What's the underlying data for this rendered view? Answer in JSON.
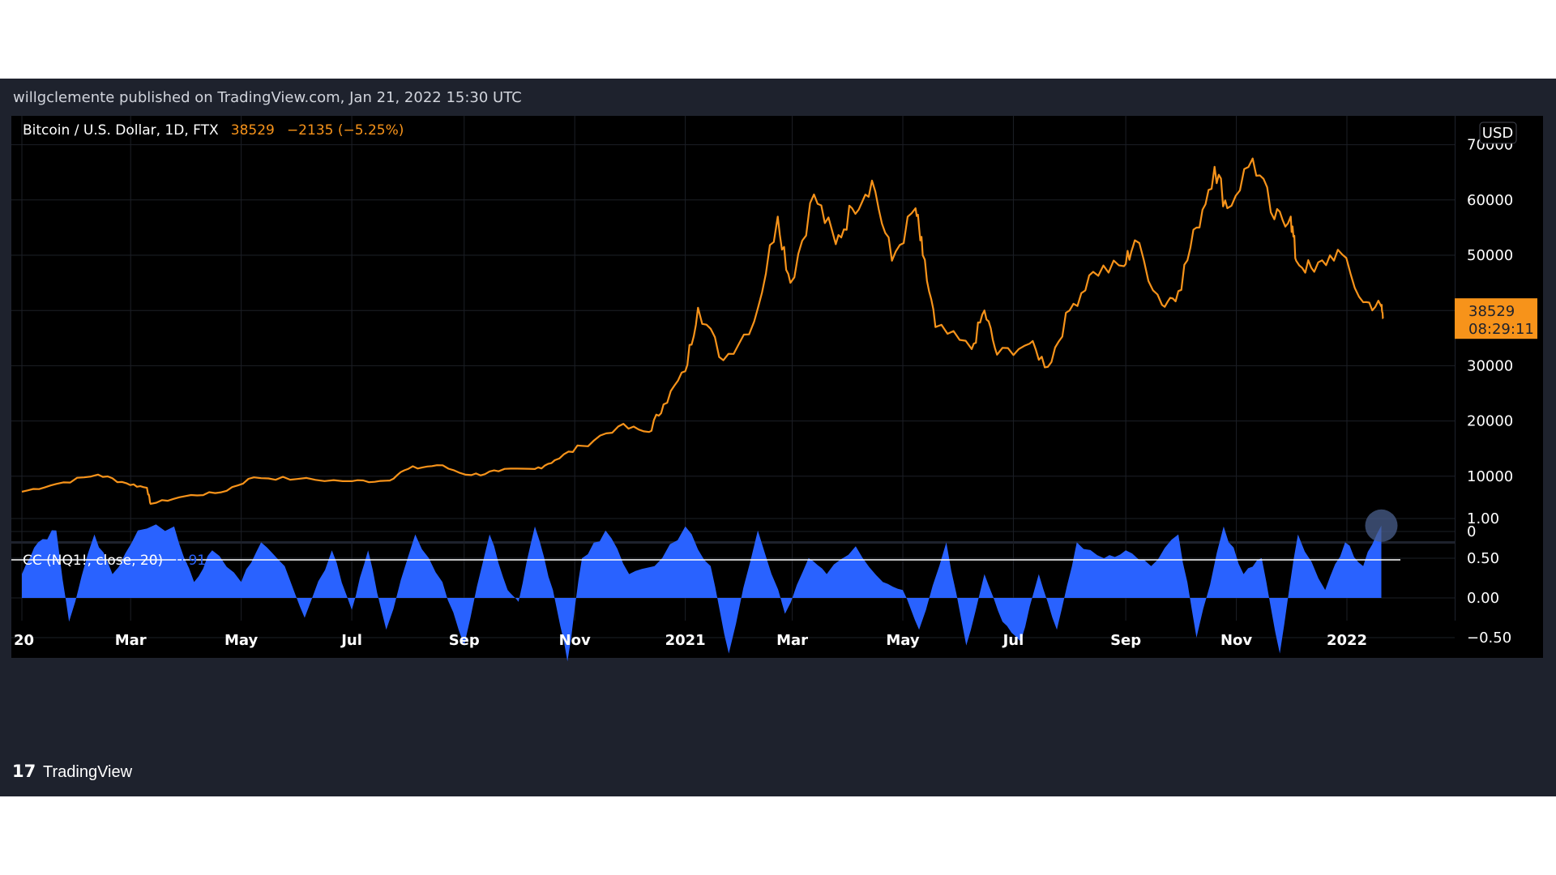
{
  "header": {
    "publisher_line": "willgclemente published on TradingView.com, Jan 21, 2022 15:30 UTC"
  },
  "legend": {
    "symbol": "Bitcoin / U.S. Dollar, 1D, FTX",
    "last": "38529",
    "change": "−2135 (−5.25%)"
  },
  "price_axis": {
    "currency_badge": "USD",
    "ticks": [
      "70000",
      "60000",
      "50000",
      "40000",
      "30000",
      "20000",
      "10000",
      "0"
    ],
    "price_label": "38529",
    "countdown_label": "08:29:11"
  },
  "indicator": {
    "title": "CC (NQ1!, close, 20)",
    "value": "0.91",
    "ticks": [
      "1.00",
      "0.50",
      "0.00",
      "−0.50"
    ]
  },
  "x_axis": {
    "ticks": [
      "20",
      "Mar",
      "May",
      "Jul",
      "Sep",
      "Nov",
      "2021",
      "Mar",
      "May",
      "Jul",
      "Sep",
      "Nov",
      "2022"
    ]
  },
  "footer": {
    "logo_text": "TradingView"
  },
  "colors": {
    "price_line": "#f7931a",
    "indicator_fill": "#2962ff",
    "background": "#000000",
    "frame": "#1e222d"
  },
  "chart_data": [
    {
      "type": "line",
      "title": "Bitcoin / U.S. Dollar, 1D, FTX",
      "ylim": [
        0,
        70000
      ],
      "series": [
        {
          "name": "Bitcoin / U.S. Dollar",
          "points": [
            [
              "2020-01-01",
              7200
            ],
            [
              "2020-01-20",
              8600
            ],
            [
              "2020-02-12",
              10300
            ],
            [
              "2020-02-28",
              8700
            ],
            [
              "2020-03-10",
              7900
            ],
            [
              "2020-03-12",
              5000
            ],
            [
              "2020-03-31",
              6400
            ],
            [
              "2020-04-20",
              7100
            ],
            [
              "2020-05-08",
              9800
            ],
            [
              "2020-06-01",
              9500
            ],
            [
              "2020-07-01",
              9100
            ],
            [
              "2020-07-20",
              9200
            ],
            [
              "2020-08-01",
              11300
            ],
            [
              "2020-08-17",
              12000
            ],
            [
              "2020-09-05",
              10200
            ],
            [
              "2020-09-20",
              10900
            ],
            [
              "2020-10-10",
              11300
            ],
            [
              "2020-10-21",
              12900
            ],
            [
              "2020-11-05",
              15500
            ],
            [
              "2020-11-25",
              19000
            ],
            [
              "2020-12-12",
              18000
            ],
            [
              "2020-12-20",
              23000
            ],
            [
              "2021-01-01",
              29000
            ],
            [
              "2021-01-08",
              40500
            ],
            [
              "2021-01-22",
              31000
            ],
            [
              "2021-02-08",
              38000
            ],
            [
              "2021-02-21",
              57000
            ],
            [
              "2021-02-28",
              45000
            ],
            [
              "2021-03-13",
              61000
            ],
            [
              "2021-03-25",
              52000
            ],
            [
              "2021-04-03",
              58500
            ],
            [
              "2021-04-14",
              63500
            ],
            [
              "2021-04-25",
              49000
            ],
            [
              "2021-05-08",
              58500
            ],
            [
              "2021-05-12",
              50000
            ],
            [
              "2021-05-19",
              37000
            ],
            [
              "2021-06-08",
              33000
            ],
            [
              "2021-06-15",
              40000
            ],
            [
              "2021-06-22",
              32000
            ],
            [
              "2021-07-10",
              34000
            ],
            [
              "2021-07-20",
              29800
            ],
            [
              "2021-08-01",
              40000
            ],
            [
              "2021-08-14",
              47000
            ],
            [
              "2021-08-31",
              48000
            ],
            [
              "2021-09-06",
              52700
            ],
            [
              "2021-09-21",
              41000
            ],
            [
              "2021-09-30",
              43500
            ],
            [
              "2021-10-10",
              55000
            ],
            [
              "2021-10-20",
              66000
            ],
            [
              "2021-10-27",
              58500
            ],
            [
              "2021-11-10",
              67500
            ],
            [
              "2021-11-22",
              56500
            ],
            [
              "2021-12-01",
              57000
            ],
            [
              "2021-12-04",
              49000
            ],
            [
              "2021-12-14",
              47000
            ],
            [
              "2021-12-27",
              51000
            ],
            [
              "2022-01-10",
              41500
            ],
            [
              "2022-01-20",
              40700
            ],
            [
              "2022-01-21",
              38529
            ]
          ]
        }
      ]
    },
    {
      "type": "area",
      "title": "CC (NQ1!, close, 20)",
      "ylim": [
        -0.75,
        1.05
      ],
      "series": [
        {
          "name": "CC (NQ1!, close, 20)",
          "points": [
            [
              "2020-01-01",
              0.3
            ],
            [
              "2020-01-10",
              0.7
            ],
            [
              "2020-01-20",
              0.85
            ],
            [
              "2020-01-27",
              -0.3
            ],
            [
              "2020-02-10",
              0.8
            ],
            [
              "2020-02-20",
              0.3
            ],
            [
              "2020-03-05",
              0.85
            ],
            [
              "2020-03-25",
              0.9
            ],
            [
              "2020-04-05",
              0.2
            ],
            [
              "2020-04-15",
              0.6
            ],
            [
              "2020-05-01",
              0.2
            ],
            [
              "2020-05-12",
              0.7
            ],
            [
              "2020-05-25",
              0.4
            ],
            [
              "2020-06-05",
              -0.25
            ],
            [
              "2020-06-20",
              0.6
            ],
            [
              "2020-07-01",
              -0.15
            ],
            [
              "2020-07-10",
              0.6
            ],
            [
              "2020-07-20",
              -0.4
            ],
            [
              "2020-08-05",
              0.8
            ],
            [
              "2020-08-20",
              0.2
            ],
            [
              "2020-09-01",
              -0.6
            ],
            [
              "2020-09-15",
              0.8
            ],
            [
              "2020-09-25",
              0.1
            ],
            [
              "2020-10-01",
              -0.05
            ],
            [
              "2020-10-10",
              0.9
            ],
            [
              "2020-10-20",
              0.1
            ],
            [
              "2020-10-28",
              -0.8
            ],
            [
              "2020-11-05",
              0.5
            ],
            [
              "2020-11-18",
              0.85
            ],
            [
              "2020-12-01",
              0.3
            ],
            [
              "2020-12-15",
              0.4
            ],
            [
              "2021-01-01",
              0.9
            ],
            [
              "2021-01-15",
              0.4
            ],
            [
              "2021-01-25",
              -0.7
            ],
            [
              "2021-02-10",
              0.85
            ],
            [
              "2021-02-25",
              -0.2
            ],
            [
              "2021-03-10",
              0.5
            ],
            [
              "2021-03-20",
              0.3
            ],
            [
              "2021-04-05",
              0.65
            ],
            [
              "2021-04-20",
              0.2
            ],
            [
              "2021-05-01",
              0.1
            ],
            [
              "2021-05-10",
              -0.4
            ],
            [
              "2021-05-25",
              0.7
            ],
            [
              "2021-06-05",
              -0.6
            ],
            [
              "2021-06-15",
              0.3
            ],
            [
              "2021-06-25",
              -0.3
            ],
            [
              "2021-07-05",
              -0.55
            ],
            [
              "2021-07-15",
              0.3
            ],
            [
              "2021-07-25",
              -0.4
            ],
            [
              "2021-08-05",
              0.7
            ],
            [
              "2021-08-20",
              0.5
            ],
            [
              "2021-09-01",
              0.6
            ],
            [
              "2021-09-15",
              0.4
            ],
            [
              "2021-09-30",
              0.8
            ],
            [
              "2021-10-10",
              -0.5
            ],
            [
              "2021-10-25",
              0.9
            ],
            [
              "2021-11-05",
              0.3
            ],
            [
              "2021-11-15",
              0.5
            ],
            [
              "2021-11-25",
              -0.7
            ],
            [
              "2021-12-05",
              0.8
            ],
            [
              "2021-12-20",
              0.1
            ],
            [
              "2021-12-31",
              0.7
            ],
            [
              "2022-01-10",
              0.4
            ],
            [
              "2022-01-20",
              0.91
            ]
          ]
        }
      ]
    }
  ]
}
